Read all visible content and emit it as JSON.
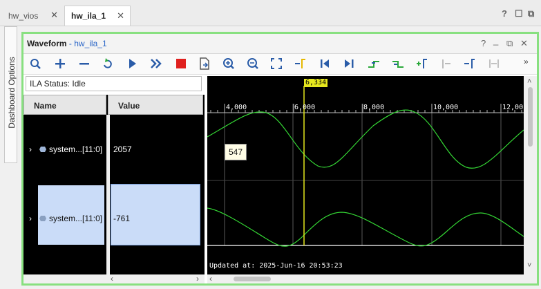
{
  "tabs": [
    {
      "label": "hw_vios",
      "active": false
    },
    {
      "label": "hw_ila_1",
      "active": true
    }
  ],
  "window_controls": {
    "help": "?",
    "maximize": "☐",
    "restore": "⧉"
  },
  "side_tab": {
    "label": "Dashboard Options"
  },
  "panel": {
    "title": "Waveform",
    "title_sep": " - ",
    "subtitle": "hw_ila_1",
    "controls": {
      "help": "?",
      "minimize": "_",
      "float": "⧉",
      "close": "✕"
    },
    "overflow": "»"
  },
  "toolbar": {
    "icons": [
      "search-icon",
      "zoom-in-add-icon",
      "minus-icon",
      "refresh-icon",
      "run-icon",
      "run-immediate-icon",
      "stop-icon",
      "export-icon",
      "zoom-in-icon",
      "zoom-out-icon",
      "zoom-fit-icon",
      "goto-cursor-icon",
      "goto-first-icon",
      "goto-last-icon",
      "prev-transition-icon",
      "next-transition-icon",
      "add-marker-icon",
      "prev-marker-icon",
      "next-marker-icon",
      "swap-markers-icon"
    ]
  },
  "ila_status": {
    "label": "ILA Status:",
    "value": "Idle"
  },
  "grid": {
    "headers": {
      "name": "Name",
      "value": "Value"
    },
    "rows": [
      {
        "expander": "›",
        "name": "system...[11:0]",
        "value": "2057",
        "selected": false
      },
      {
        "expander": "›",
        "name": "system...[11:0]",
        "value": "-761",
        "selected": true
      }
    ]
  },
  "waveform": {
    "x_ticks": [
      "4,000",
      "6,000",
      "8,000",
      "10,000",
      "12,00"
    ],
    "cursor_label": "6,334",
    "tooltip": "547",
    "updated_text": "Updated at: 2025-Jun-16 20:53:23",
    "colors": {
      "background": "#000000",
      "signal": "#34d634",
      "cursor": "#e6e81e",
      "grid": "#5a5a5a",
      "selection_border": "#88e080"
    }
  },
  "scroll": {
    "left": "‹",
    "right": "›",
    "up": "˄",
    "down": "˅"
  }
}
